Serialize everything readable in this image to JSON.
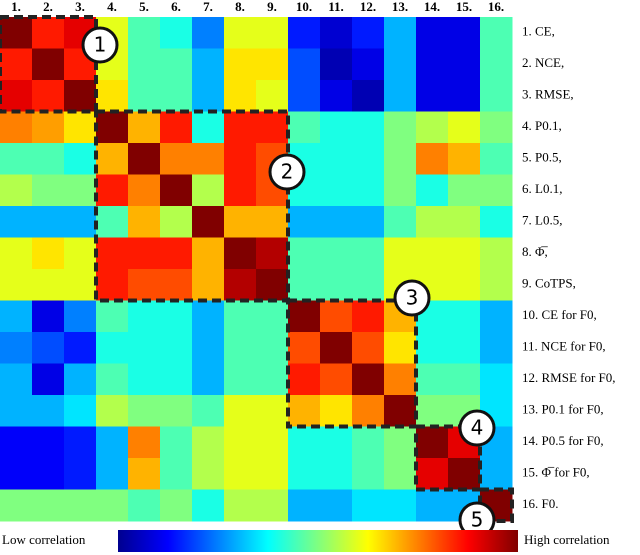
{
  "chart_data": {
    "type": "heatmap",
    "columns": [
      "1.",
      "2.",
      "3.",
      "4.",
      "5.",
      "6.",
      "7.",
      "8.",
      "9.",
      "10.",
      "11.",
      "12.",
      "13.",
      "14.",
      "15.",
      "16."
    ],
    "rows": [
      "1. CE,",
      "2. NCE,",
      "3. RMSE,",
      "4. P0.1,",
      "5. P0.5,",
      "6. L0.1,",
      "7. L0.5,",
      "8. Φ̅,",
      "9. CoTPS,",
      "10. CE for F0,",
      "11. NCE for F0,",
      "12. RMSE for F0,",
      "13. P0.1 for F0,",
      "14. P0.5 for F0,",
      "15. Φ̅ for F0,",
      "16. F0."
    ],
    "values": [
      [
        1,
        0.85,
        0.9,
        0.6,
        0.45,
        0.4,
        0.25,
        0.6,
        0.6,
        0.15,
        0.08,
        0.15,
        0.3,
        0.1,
        0.1,
        0.45
      ],
      [
        0.85,
        1,
        0.85,
        0.6,
        0.45,
        0.45,
        0.3,
        0.65,
        0.65,
        0.2,
        0.05,
        0.1,
        0.3,
        0.1,
        0.1,
        0.45
      ],
      [
        0.9,
        0.85,
        1,
        0.65,
        0.45,
        0.45,
        0.3,
        0.65,
        0.6,
        0.2,
        0.1,
        0.05,
        0.3,
        0.1,
        0.1,
        0.45
      ],
      [
        0.75,
        0.72,
        0.65,
        1,
        0.7,
        0.85,
        0.4,
        0.85,
        0.85,
        0.45,
        0.4,
        0.4,
        0.5,
        0.55,
        0.6,
        0.5
      ],
      [
        0.45,
        0.45,
        0.4,
        0.7,
        1,
        0.75,
        0.75,
        0.85,
        0.8,
        0.4,
        0.4,
        0.4,
        0.5,
        0.75,
        0.7,
        0.45
      ],
      [
        0.55,
        0.5,
        0.5,
        0.85,
        0.75,
        1,
        0.55,
        0.85,
        0.8,
        0.4,
        0.4,
        0.4,
        0.5,
        0.4,
        0.5,
        0.5
      ],
      [
        0.3,
        0.3,
        0.3,
        0.45,
        0.7,
        0.55,
        1,
        0.7,
        0.7,
        0.3,
        0.3,
        0.3,
        0.45,
        0.55,
        0.55,
        0.4
      ],
      [
        0.6,
        0.65,
        0.6,
        0.85,
        0.85,
        0.85,
        0.7,
        1,
        0.95,
        0.45,
        0.45,
        0.45,
        0.6,
        0.6,
        0.6,
        0.55
      ],
      [
        0.6,
        0.6,
        0.6,
        0.85,
        0.8,
        0.8,
        0.7,
        0.95,
        1,
        0.45,
        0.45,
        0.45,
        0.6,
        0.6,
        0.6,
        0.55
      ],
      [
        0.3,
        0.1,
        0.25,
        0.45,
        0.4,
        0.4,
        0.3,
        0.45,
        0.45,
        1,
        0.8,
        0.85,
        0.7,
        0.4,
        0.4,
        0.3
      ],
      [
        0.25,
        0.2,
        0.15,
        0.4,
        0.4,
        0.4,
        0.3,
        0.45,
        0.45,
        0.8,
        1,
        0.8,
        0.65,
        0.4,
        0.4,
        0.3
      ],
      [
        0.3,
        0.1,
        0.3,
        0.45,
        0.4,
        0.4,
        0.3,
        0.45,
        0.45,
        0.85,
        0.8,
        1,
        0.75,
        0.45,
        0.45,
        0.35
      ],
      [
        0.3,
        0.3,
        0.35,
        0.55,
        0.5,
        0.5,
        0.45,
        0.6,
        0.6,
        0.7,
        0.65,
        0.75,
        1,
        0.5,
        0.5,
        0.35
      ],
      [
        0.12,
        0.12,
        0.15,
        0.3,
        0.75,
        0.45,
        0.55,
        0.6,
        0.6,
        0.4,
        0.4,
        0.45,
        0.5,
        1,
        0.9,
        0.3
      ],
      [
        0.12,
        0.12,
        0.15,
        0.3,
        0.7,
        0.45,
        0.55,
        0.6,
        0.6,
        0.4,
        0.4,
        0.45,
        0.5,
        0.9,
        1,
        0.3
      ],
      [
        0.5,
        0.5,
        0.5,
        0.5,
        0.45,
        0.5,
        0.4,
        0.55,
        0.55,
        0.3,
        0.3,
        0.35,
        0.35,
        0.3,
        0.3,
        1
      ]
    ],
    "clusters": [
      "1",
      "2",
      "3",
      "4",
      "5"
    ],
    "colorbar": {
      "low_label": "Low correlation",
      "high_label": "High correlation"
    }
  }
}
